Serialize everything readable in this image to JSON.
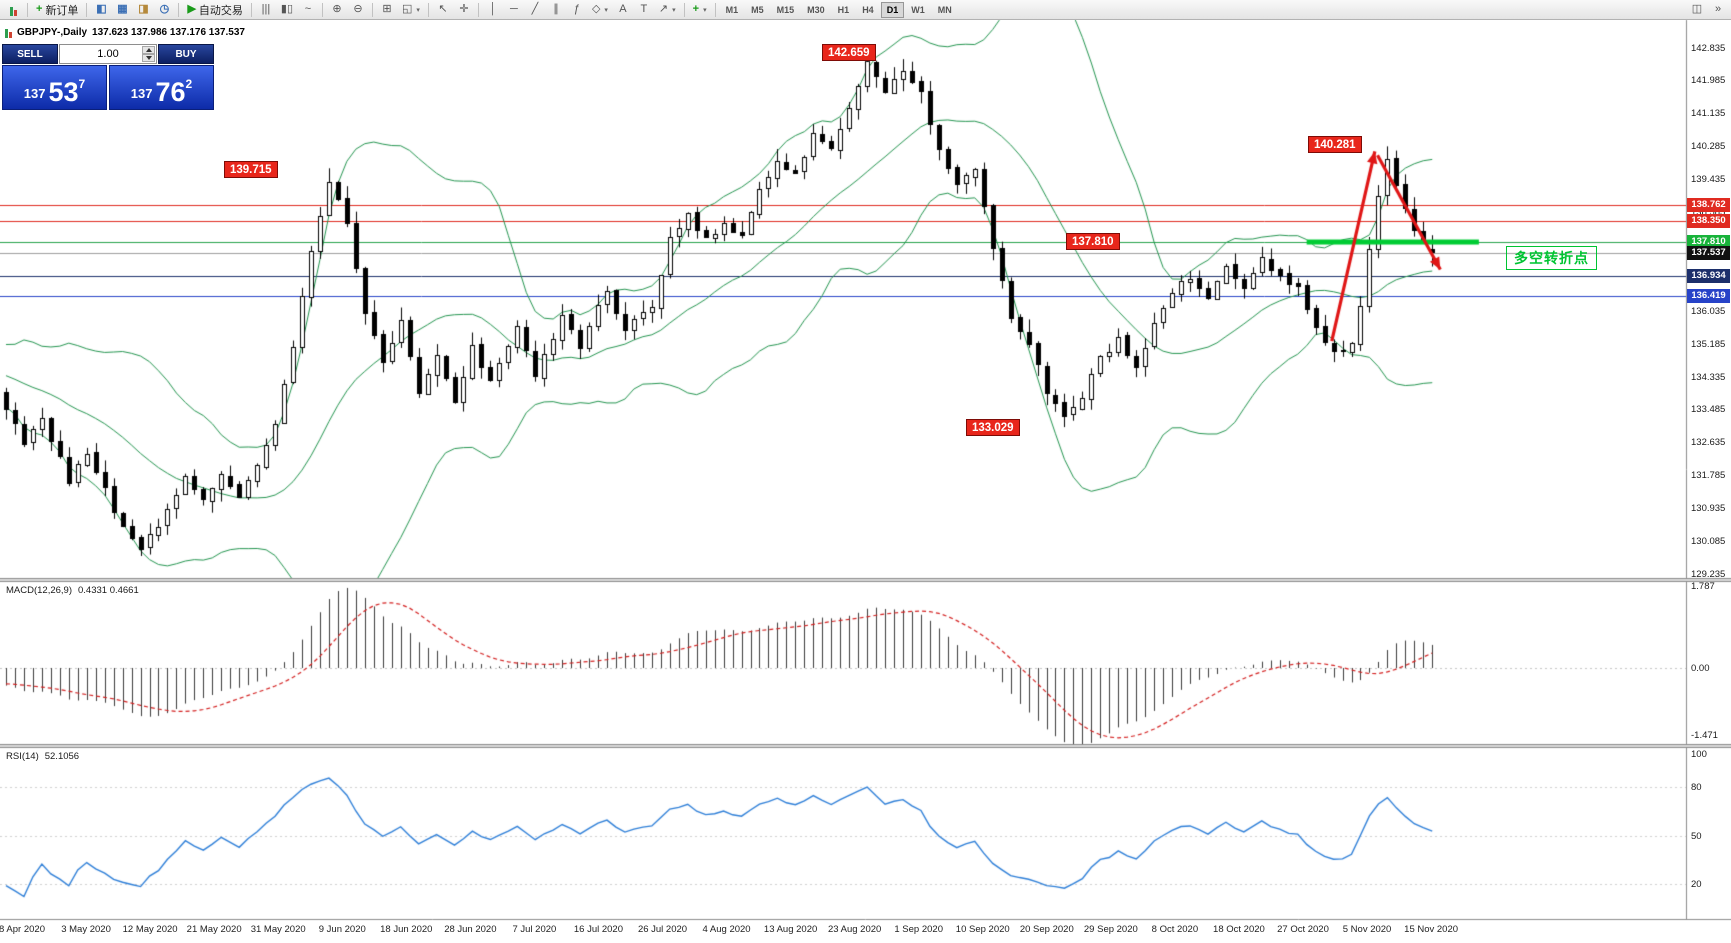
{
  "toolbar": {
    "new_order_label": "新订单",
    "autotrading_label": "自动交易",
    "timeframes": [
      "M1",
      "M5",
      "M15",
      "M30",
      "H1",
      "H4",
      "D1",
      "W1",
      "MN"
    ],
    "active_timeframe": "D1",
    "items": [
      {
        "type": "candles-css",
        "name": "chart-window-button"
      },
      {
        "type": "sep"
      },
      {
        "type": "button",
        "name": "new-order-button",
        "glyph": "+",
        "glyph_color": "#1a9b1a",
        "label": "新订单"
      },
      {
        "type": "sep"
      },
      {
        "type": "button",
        "name": "market-watch-button",
        "glyph": "◧",
        "glyph_color": "#3b6fb5"
      },
      {
        "type": "button",
        "name": "data-window-button",
        "glyph": "▦",
        "glyph_color": "#3b6fb5"
      },
      {
        "type": "button",
        "name": "navigator-button",
        "glyph": "◨",
        "glyph_color": "#b5893b"
      },
      {
        "type": "button",
        "name": "terminal-button",
        "glyph": "◷",
        "glyph_color": "#3b6fb5"
      },
      {
        "type": "sep"
      },
      {
        "type": "button",
        "name": "autotrading-button",
        "glyph": "▶",
        "glyph_color": "#1a9b1a",
        "label": "自动交易"
      },
      {
        "type": "sep"
      },
      {
        "type": "button",
        "name": "bar-chart-button",
        "glyph": "|||"
      },
      {
        "type": "button",
        "name": "candlestick-chart-button",
        "glyph": "▮▯"
      },
      {
        "type": "button",
        "name": "line-chart-button",
        "glyph": "~"
      },
      {
        "type": "sep"
      },
      {
        "type": "button",
        "name": "zoom-in-button",
        "glyph": "⊕"
      },
      {
        "type": "button",
        "name": "zoom-out-button",
        "glyph": "⊖"
      },
      {
        "type": "sep"
      },
      {
        "type": "button",
        "name": "tile-windows-button",
        "glyph": "⊞"
      },
      {
        "type": "button",
        "name": "arrange-windows-button",
        "glyph": "◱",
        "arrow": true
      },
      {
        "type": "sep"
      },
      {
        "type": "button",
        "name": "cursor-button",
        "glyph": "↖"
      },
      {
        "type": "button",
        "name": "crosshair-button",
        "glyph": "✛"
      },
      {
        "type": "sep"
      },
      {
        "type": "button",
        "name": "vertical-line-button",
        "glyph": "│"
      },
      {
        "type": "button",
        "name": "horizontal-line-button",
        "glyph": "─"
      },
      {
        "type": "button",
        "name": "trendline-button",
        "glyph": "╱"
      },
      {
        "type": "button",
        "name": "equidistant-channel-button",
        "glyph": "∥"
      },
      {
        "type": "button",
        "name": "fibonacci-button",
        "glyph": "ƒ"
      },
      {
        "type": "button",
        "name": "shapes-button",
        "glyph": "◇",
        "arrow": true
      },
      {
        "type": "button",
        "name": "text-button",
        "glyph": "A"
      },
      {
        "type": "button",
        "name": "text-label-button",
        "glyph": "T"
      },
      {
        "type": "button",
        "name": "arrow-tools-button",
        "glyph": "↗",
        "arrow": true
      },
      {
        "type": "sep"
      },
      {
        "type": "button",
        "name": "indicators-button",
        "glyph": "+",
        "glyph_color": "#1a9b1a",
        "arrow": true
      },
      {
        "type": "sep"
      },
      {
        "type": "timeframes"
      },
      {
        "type": "spacer"
      },
      {
        "type": "button",
        "name": "chart-shift-button",
        "glyph": "◫"
      },
      {
        "type": "button",
        "name": "auto-scroll-button",
        "glyph": "»"
      }
    ]
  },
  "chart_header": {
    "symbol": "GBPJPY-,Daily",
    "ohlc": "137.623 137.986 137.176 137.537"
  },
  "one_click": {
    "sell_label": "SELL",
    "buy_label": "BUY",
    "volume": "1.00",
    "sell_price_main": "137",
    "sell_price_big": "53",
    "sell_price_sup": "7",
    "buy_price_main": "137",
    "buy_price_big": "76",
    "buy_price_sup": "2"
  },
  "indicators": {
    "macd_title": "MACD(12,26,9)",
    "macd_values": "0.4331 0.4661",
    "rsi_title": "RSI(14)",
    "rsi_value": "52.1056"
  },
  "note": {
    "text": "多空转折点",
    "color": "#00c432"
  },
  "price_labels": [
    {
      "text": "142.659",
      "price": 142.659
    },
    {
      "text": "139.715",
      "price": 139.715
    },
    {
      "text": "140.281",
      "price": 140.281
    },
    {
      "text": "137.810",
      "price": 137.81
    },
    {
      "text": "133.029",
      "price": 133.029
    }
  ],
  "axis": {
    "main_ticks": [
      142.835,
      141.985,
      141.135,
      140.285,
      139.435,
      138.585,
      137.735,
      136.885,
      136.035,
      135.185,
      134.335,
      133.485,
      132.635,
      131.785,
      130.935,
      130.085,
      129.235
    ],
    "macd_ticks": [
      {
        "label": "1.787",
        "value": 1.787
      },
      {
        "label": "0.00",
        "value": 0
      },
      {
        "label": "-1.471",
        "value": -1.471
      }
    ],
    "rsi_ticks": [
      {
        "label": "100",
        "value": 100
      },
      {
        "label": "80",
        "value": 80
      },
      {
        "label": "50",
        "value": 50
      },
      {
        "label": "20",
        "value": 20
      }
    ],
    "boxes": [
      {
        "text": "138.762",
        "price": 138.762,
        "color": "#e02a20"
      },
      {
        "text": "138.350",
        "price": 138.35,
        "color": "#e02a20"
      },
      {
        "text": "137.810",
        "price": 137.81,
        "color": "#18b33a"
      },
      {
        "text": "137.537",
        "price": 137.537,
        "color": "#111111"
      },
      {
        "text": "136.934",
        "price": 136.934,
        "color": "#1c2f6b"
      },
      {
        "text": "136.419",
        "price": 136.419,
        "color": "#2743c8"
      }
    ]
  },
  "dates": [
    "8 Apr 2020",
    "3 May 2020",
    "12 May 2020",
    "21 May 2020",
    "31 May 2020",
    "9 Jun 2020",
    "18 Jun 2020",
    "28 Jun 2020",
    "7 Jul 2020",
    "16 Jul 2020",
    "26 Jul 2020",
    "4 Aug 2020",
    "13 Aug 2020",
    "23 Aug 2020",
    "1 Sep 2020",
    "10 Sep 2020",
    "20 Sep 2020",
    "29 Sep 2020",
    "8 Oct 2020",
    "18 Oct 2020",
    "27 Oct 2020",
    "5 Nov 2020",
    "15 Nov 2020"
  ],
  "colors": {
    "bull": "#ffffff",
    "bear": "#000000",
    "bollinger": "#23954f",
    "macd_histogram": "#3a3a3a",
    "macd_signal": "#d42020",
    "rsi_line": "#2e7fd8",
    "arrow": "#e01616",
    "green_level": "#00cc33"
  },
  "chart_data": {
    "type": "candlestick",
    "symbol": "GBPJPY-",
    "timeframe": "Daily",
    "bars_visible": 160,
    "price_axis": {
      "min": 129.235,
      "max": 142.835,
      "step": 0.85
    },
    "last_ohlc": {
      "open": 137.623,
      "high": 137.986,
      "low": 137.176,
      "close": 137.537
    },
    "sell_price": 137.537,
    "buy_price": 137.762,
    "key_extremes": {
      "may_low": 129.7,
      "june_high": 139.715,
      "aug_high": 142.659,
      "sep_low": 133.029,
      "nov_high": 140.281,
      "last_close": 137.537
    },
    "keypoints": [
      [
        0,
        133.6
      ],
      [
        2,
        132.7
      ],
      [
        4,
        133.3
      ],
      [
        7,
        131.7
      ],
      [
        9,
        132.4
      ],
      [
        12,
        130.9
      ],
      [
        15,
        129.9
      ],
      [
        18,
        130.9
      ],
      [
        20,
        131.8
      ],
      [
        22,
        131.2
      ],
      [
        24,
        131.9
      ],
      [
        26,
        131.3
      ],
      [
        28,
        132.0
      ],
      [
        30,
        133.0
      ],
      [
        32,
        135.2
      ],
      [
        34,
        137.6
      ],
      [
        36,
        139.35
      ],
      [
        38,
        138.3
      ],
      [
        40,
        136.0
      ],
      [
        42,
        134.7
      ],
      [
        44,
        135.9
      ],
      [
        46,
        133.9
      ],
      [
        48,
        134.9
      ],
      [
        50,
        133.6
      ],
      [
        52,
        135.1
      ],
      [
        54,
        134.2
      ],
      [
        57,
        135.7
      ],
      [
        59,
        134.4
      ],
      [
        62,
        135.9
      ],
      [
        64,
        135.1
      ],
      [
        67,
        136.6
      ],
      [
        69,
        135.5
      ],
      [
        72,
        136.2
      ],
      [
        74,
        137.9
      ],
      [
        76,
        138.5
      ],
      [
        78,
        137.9
      ],
      [
        80,
        138.3
      ],
      [
        82,
        138.0
      ],
      [
        84,
        139.2
      ],
      [
        86,
        139.9
      ],
      [
        88,
        139.5
      ],
      [
        90,
        140.7
      ],
      [
        92,
        140.2
      ],
      [
        94,
        141.3
      ],
      [
        96,
        142.4
      ],
      [
        98,
        141.7
      ],
      [
        100,
        142.2
      ],
      [
        102,
        141.7
      ],
      [
        104,
        140.2
      ],
      [
        106,
        139.4
      ],
      [
        108,
        139.8
      ],
      [
        110,
        137.6
      ],
      [
        112,
        135.9
      ],
      [
        114,
        135.1
      ],
      [
        116,
        134.0
      ],
      [
        118,
        133.4
      ],
      [
        120,
        133.8
      ],
      [
        122,
        134.8
      ],
      [
        124,
        135.3
      ],
      [
        126,
        134.5
      ],
      [
        128,
        135.6
      ],
      [
        130,
        136.6
      ],
      [
        132,
        136.9
      ],
      [
        134,
        136.3
      ],
      [
        136,
        137.2
      ],
      [
        138,
        136.6
      ],
      [
        140,
        137.4
      ],
      [
        142,
        136.9
      ],
      [
        144,
        136.6
      ],
      [
        146,
        135.6
      ],
      [
        148,
        134.9
      ],
      [
        150,
        135.3
      ],
      [
        151,
        136.2
      ],
      [
        152,
        137.6
      ],
      [
        153,
        139.1
      ],
      [
        154,
        139.9
      ],
      [
        155,
        139.3
      ],
      [
        156,
        138.6
      ],
      [
        157,
        138.2
      ],
      [
        158,
        137.9
      ],
      [
        159,
        137.54
      ]
    ],
    "exact_bars": {
      "15": {
        "low": 129.7
      },
      "36": {
        "high": 139.715
      },
      "96": {
        "high": 142.659
      },
      "118": {
        "low": 133.029
      },
      "154": {
        "high": 140.281
      },
      "159": {
        "open": 137.623,
        "high": 137.986,
        "low": 137.176,
        "close": 137.537
      }
    },
    "bollinger": {
      "period": 20,
      "deviations": 2
    },
    "macd": {
      "fast": 12,
      "slow": 26,
      "signal": 9,
      "current_main": 0.4331,
      "current_signal": 0.4661,
      "scale_max": 1.787,
      "scale_min": -1.471
    },
    "rsi": {
      "period": 14,
      "current": 52.1056
    },
    "hlines": [
      {
        "price": 138.762,
        "color": "#e02a20"
      },
      {
        "price": 138.35,
        "color": "#e02a20"
      },
      {
        "price": 137.81,
        "color": "#25a24a"
      },
      {
        "price": 137.537,
        "color": "#9e9e9e"
      },
      {
        "price": 136.934,
        "color": "#1c2f6b"
      },
      {
        "price": 136.419,
        "color": "#2743c8"
      }
    ],
    "green_segment": {
      "price": 137.81,
      "i1": 145.0,
      "i2": 164.2
    },
    "arrows": [
      {
        "points": [
          [
            147.8,
            135.25
          ],
          [
            152.6,
            140.15
          ]
        ]
      },
      {
        "points": [
          [
            152.9,
            140.05
          ],
          [
            159.9,
            137.1
          ]
        ]
      }
    ]
  }
}
